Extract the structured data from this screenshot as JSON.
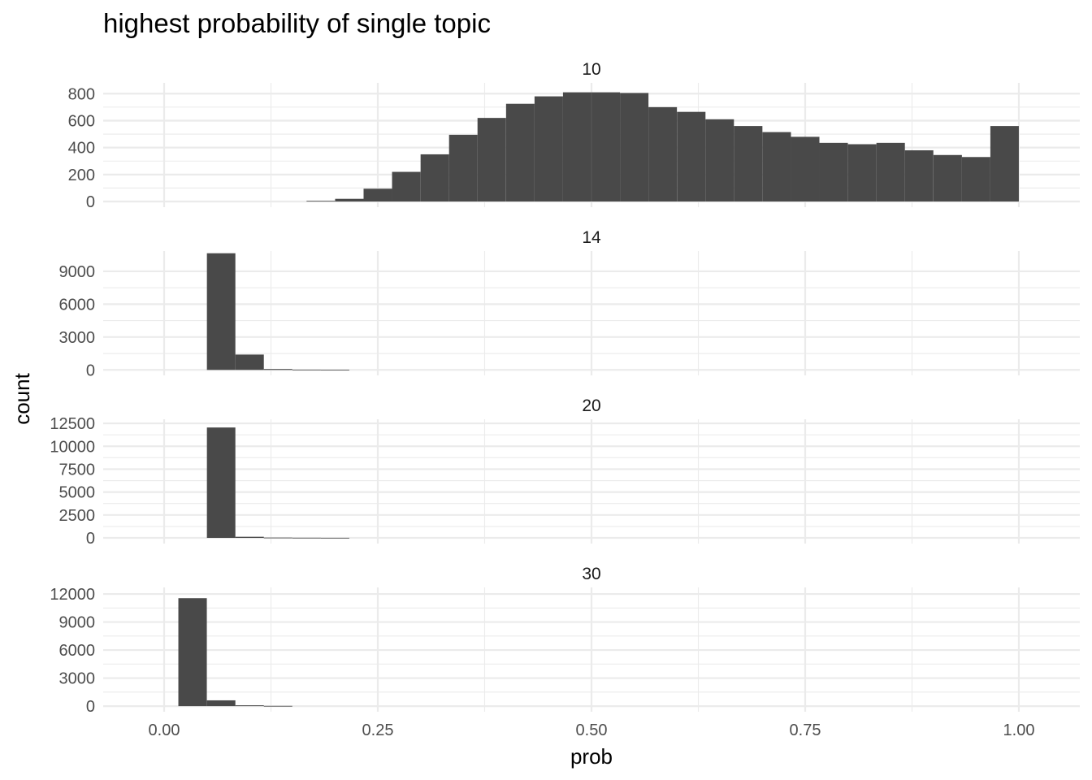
{
  "chart_data": {
    "type": "bar",
    "title": "highest probability of single topic",
    "xlabel": "prob",
    "ylabel": "count",
    "xlim": [
      -0.0713,
      1.0713
    ],
    "x_ticks": [
      0.0,
      0.25,
      0.5,
      0.75,
      1.0
    ],
    "x_tick_labels": [
      "0.00",
      "0.25",
      "0.50",
      "0.75",
      "1.00"
    ],
    "bin_width": 0.0333,
    "grid": true,
    "panels": [
      {
        "name": "10",
        "ylim": [
          -42,
          880
        ],
        "y_ticks": [
          0,
          200,
          400,
          600,
          800
        ],
        "y_tick_labels": [
          "0",
          "200",
          "400",
          "600",
          "800"
        ],
        "bins": [
          {
            "x": 0.1833,
            "y": 5
          },
          {
            "x": 0.2167,
            "y": 20
          },
          {
            "x": 0.25,
            "y": 95
          },
          {
            "x": 0.2833,
            "y": 220
          },
          {
            "x": 0.3167,
            "y": 350
          },
          {
            "x": 0.35,
            "y": 495
          },
          {
            "x": 0.3833,
            "y": 620
          },
          {
            "x": 0.4167,
            "y": 725
          },
          {
            "x": 0.45,
            "y": 780
          },
          {
            "x": 0.4833,
            "y": 810
          },
          {
            "x": 0.5167,
            "y": 810
          },
          {
            "x": 0.55,
            "y": 805
          },
          {
            "x": 0.5833,
            "y": 700
          },
          {
            "x": 0.6167,
            "y": 665
          },
          {
            "x": 0.65,
            "y": 610
          },
          {
            "x": 0.6833,
            "y": 560
          },
          {
            "x": 0.7167,
            "y": 515
          },
          {
            "x": 0.75,
            "y": 480
          },
          {
            "x": 0.7833,
            "y": 435
          },
          {
            "x": 0.8167,
            "y": 425
          },
          {
            "x": 0.85,
            "y": 435
          },
          {
            "x": 0.8833,
            "y": 380
          },
          {
            "x": 0.9167,
            "y": 345
          },
          {
            "x": 0.95,
            "y": 330
          },
          {
            "x": 0.9833,
            "y": 560
          }
        ]
      },
      {
        "name": "14",
        "ylim": [
          -500,
          10850
        ],
        "y_ticks": [
          0,
          3000,
          6000,
          9000
        ],
        "y_tick_labels": [
          "0",
          "3000",
          "6000",
          "9000"
        ],
        "bins": [
          {
            "x": 0.0667,
            "y": 10650
          },
          {
            "x": 0.1,
            "y": 1400
          },
          {
            "x": 0.1333,
            "y": 80
          },
          {
            "x": 0.1667,
            "y": 25
          },
          {
            "x": 0.2,
            "y": 10
          }
        ]
      },
      {
        "name": "20",
        "ylim": [
          -620,
          12950
        ],
        "y_ticks": [
          0,
          2500,
          5000,
          7500,
          10000,
          12500
        ],
        "y_tick_labels": [
          "0",
          "2500",
          "5000",
          "7500",
          "10000",
          "12500"
        ],
        "bins": [
          {
            "x": 0.0667,
            "y": 12050
          },
          {
            "x": 0.1,
            "y": 120
          },
          {
            "x": 0.1333,
            "y": 30
          },
          {
            "x": 0.1667,
            "y": 15
          },
          {
            "x": 0.2,
            "y": 8
          }
        ]
      },
      {
        "name": "30",
        "ylim": [
          -600,
          12700
        ],
        "y_ticks": [
          0,
          3000,
          6000,
          9000,
          12000
        ],
        "y_tick_labels": [
          "0",
          "3000",
          "6000",
          "9000",
          "12000"
        ],
        "bins": [
          {
            "x": 0.0333,
            "y": 11550
          },
          {
            "x": 0.0667,
            "y": 620
          },
          {
            "x": 0.1,
            "y": 90
          },
          {
            "x": 0.1333,
            "y": 25
          }
        ]
      }
    ]
  }
}
